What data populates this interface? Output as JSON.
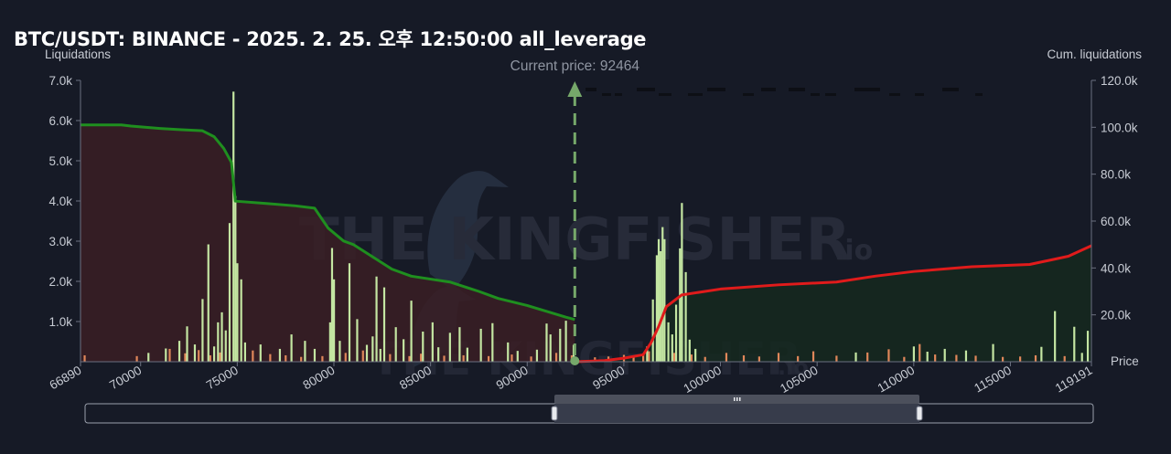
{
  "title": "BTC/USDT: BINANCE - 2025. 2. 25. 오후 12:50:00 all_leverage",
  "left_axis_title": "Liquidations",
  "right_axis_title": "Cum. liquidations",
  "current_price_label": "Current price: 92464",
  "price_axis_label": "Price",
  "watermark": "THE KINGFISHER",
  "watermark_suffix": ".io",
  "colors": {
    "background": "#161a26",
    "short_cum_line": "#1f8f1f",
    "short_cum_fill": "#3a1e25",
    "long_cum_line": "#e01b1b",
    "long_cum_fill": "#15291f",
    "bar_green": "#c4e6a2",
    "bar_orange": "#e0875a",
    "current_price_marker": "#76a86a"
  },
  "chart_data": {
    "type": "bar",
    "current_price": 92464,
    "xlim": [
      66890,
      119191
    ],
    "x_ticks": [
      66890,
      70000,
      75000,
      80000,
      85000,
      90000,
      95000,
      100000,
      105000,
      110000,
      115000,
      119191
    ],
    "ylim_left": [
      0,
      7000
    ],
    "y_ticks_left": [
      {
        "v": 1000,
        "label": "1.0k"
      },
      {
        "v": 2000,
        "label": "2.0k"
      },
      {
        "v": 3000,
        "label": "3.0k"
      },
      {
        "v": 4000,
        "label": "4.0k"
      },
      {
        "v": 5000,
        "label": "5.0k"
      },
      {
        "v": 6000,
        "label": "6.0k"
      },
      {
        "v": 7000,
        "label": "7.0k"
      }
    ],
    "ylim_right": [
      0,
      120000
    ],
    "y_ticks_right": [
      {
        "v": 20000,
        "label": "20.0k"
      },
      {
        "v": 40000,
        "label": "40.0k"
      },
      {
        "v": 60000,
        "label": "60.0k"
      },
      {
        "v": 80000,
        "label": "80.0k"
      },
      {
        "v": 100000,
        "label": "100.0k"
      },
      {
        "v": 120000,
        "label": "120.0k"
      }
    ],
    "series": [
      {
        "name": "short_cumulative",
        "kind": "line",
        "points": [
          [
            66890,
            101000
          ],
          [
            69000,
            101000
          ],
          [
            69500,
            100500
          ],
          [
            71000,
            99500
          ],
          [
            72000,
            99000
          ],
          [
            73200,
            98500
          ],
          [
            73800,
            96000
          ],
          [
            74300,
            91000
          ],
          [
            74700,
            85000
          ],
          [
            74900,
            68500
          ],
          [
            76500,
            67500
          ],
          [
            78000,
            66500
          ],
          [
            79000,
            65500
          ],
          [
            79700,
            57000
          ],
          [
            80500,
            51500
          ],
          [
            81000,
            50000
          ],
          [
            83000,
            39500
          ],
          [
            84000,
            36500
          ],
          [
            86000,
            34000
          ],
          [
            87500,
            30000
          ],
          [
            88500,
            27000
          ],
          [
            90000,
            24000
          ],
          [
            91000,
            21500
          ],
          [
            92000,
            19000
          ],
          [
            92464,
            18000
          ]
        ]
      },
      {
        "name": "long_cumulative",
        "kind": "line",
        "points": [
          [
            92464,
            0
          ],
          [
            94000,
            500
          ],
          [
            95000,
            1500
          ],
          [
            96000,
            3000
          ],
          [
            96400,
            8000
          ],
          [
            96800,
            15000
          ],
          [
            97200,
            23500
          ],
          [
            98000,
            28500
          ],
          [
            100000,
            31000
          ],
          [
            103000,
            32800
          ],
          [
            106000,
            34000
          ],
          [
            108000,
            36500
          ],
          [
            110000,
            38500
          ],
          [
            113000,
            40500
          ],
          [
            116000,
            41500
          ],
          [
            118000,
            45000
          ],
          [
            119191,
            49500
          ]
        ]
      },
      {
        "name": "liquidations_green",
        "kind": "bars",
        "points": [
          [
            70400,
            220
          ],
          [
            71300,
            330
          ],
          [
            72000,
            520
          ],
          [
            72400,
            880
          ],
          [
            72800,
            430
          ],
          [
            73200,
            1560
          ],
          [
            73500,
            2920
          ],
          [
            73800,
            380
          ],
          [
            74000,
            980
          ],
          [
            74200,
            1230
          ],
          [
            74400,
            780
          ],
          [
            74600,
            3450
          ],
          [
            74800,
            6720
          ],
          [
            74900,
            4120
          ],
          [
            75000,
            2450
          ],
          [
            75200,
            2050
          ],
          [
            75400,
            480
          ],
          [
            76200,
            430
          ],
          [
            77200,
            320
          ],
          [
            77800,
            680
          ],
          [
            78500,
            520
          ],
          [
            79000,
            320
          ],
          [
            79800,
            980
          ],
          [
            79900,
            2830
          ],
          [
            80000,
            2050
          ],
          [
            80300,
            520
          ],
          [
            80800,
            2450
          ],
          [
            81200,
            1060
          ],
          [
            81700,
            420
          ],
          [
            82000,
            630
          ],
          [
            82200,
            2120
          ],
          [
            82400,
            320
          ],
          [
            82600,
            1850
          ],
          [
            83200,
            860
          ],
          [
            83600,
            560
          ],
          [
            84000,
            1520
          ],
          [
            84600,
            750
          ],
          [
            85100,
            980
          ],
          [
            85400,
            360
          ],
          [
            86000,
            720
          ],
          [
            86500,
            860
          ],
          [
            86900,
            350
          ],
          [
            87600,
            820
          ],
          [
            88200,
            960
          ],
          [
            89000,
            480
          ],
          [
            89500,
            270
          ],
          [
            90500,
            300
          ],
          [
            91000,
            950
          ],
          [
            91200,
            680
          ],
          [
            91700,
            820
          ],
          [
            92000,
            1020
          ],
          [
            92400,
            420
          ],
          [
            96200,
            380
          ],
          [
            96500,
            1550
          ],
          [
            96700,
            2650
          ],
          [
            96800,
            3050
          ],
          [
            96900,
            2750
          ],
          [
            97000,
            3350
          ],
          [
            97100,
            3050
          ],
          [
            97300,
            980
          ],
          [
            97500,
            680
          ],
          [
            97700,
            1420
          ],
          [
            97900,
            2820
          ],
          [
            98000,
            3950
          ],
          [
            98200,
            2230
          ],
          [
            98400,
            550
          ],
          [
            98700,
            320
          ],
          [
            107000,
            230
          ],
          [
            110000,
            380
          ],
          [
            110700,
            250
          ],
          [
            111600,
            320
          ],
          [
            112700,
            280
          ],
          [
            114100,
            440
          ],
          [
            116600,
            370
          ],
          [
            117300,
            1260
          ],
          [
            118300,
            870
          ],
          [
            118700,
            220
          ],
          [
            119000,
            770
          ]
        ]
      },
      {
        "name": "liquidations_orange",
        "kind": "bars",
        "points": [
          [
            67100,
            160
          ],
          [
            69800,
            140
          ],
          [
            71500,
            320
          ],
          [
            72300,
            210
          ],
          [
            73000,
            290
          ],
          [
            73600,
            160
          ],
          [
            74100,
            230
          ],
          [
            75800,
            280
          ],
          [
            76700,
            190
          ],
          [
            77500,
            160
          ],
          [
            78300,
            120
          ],
          [
            79400,
            140
          ],
          [
            80600,
            220
          ],
          [
            81500,
            280
          ],
          [
            82900,
            190
          ],
          [
            83900,
            140
          ],
          [
            84500,
            200
          ],
          [
            85700,
            150
          ],
          [
            86700,
            160
          ],
          [
            88000,
            140
          ],
          [
            89200,
            180
          ],
          [
            90200,
            130
          ],
          [
            91500,
            220
          ],
          [
            92300,
            160
          ],
          [
            93500,
            110
          ],
          [
            94200,
            130
          ],
          [
            95000,
            170
          ],
          [
            95500,
            130
          ],
          [
            96000,
            200
          ],
          [
            96300,
            260
          ],
          [
            97600,
            220
          ],
          [
            98500,
            180
          ],
          [
            99200,
            120
          ],
          [
            100300,
            220
          ],
          [
            101200,
            160
          ],
          [
            102000,
            130
          ],
          [
            103000,
            220
          ],
          [
            104000,
            140
          ],
          [
            104800,
            260
          ],
          [
            106000,
            150
          ],
          [
            107600,
            230
          ],
          [
            108700,
            310
          ],
          [
            109500,
            120
          ],
          [
            110300,
            440
          ],
          [
            111100,
            180
          ],
          [
            112200,
            170
          ],
          [
            113200,
            150
          ],
          [
            114600,
            120
          ],
          [
            115500,
            130
          ],
          [
            116300,
            160
          ],
          [
            117800,
            140
          ]
        ]
      }
    ]
  }
}
